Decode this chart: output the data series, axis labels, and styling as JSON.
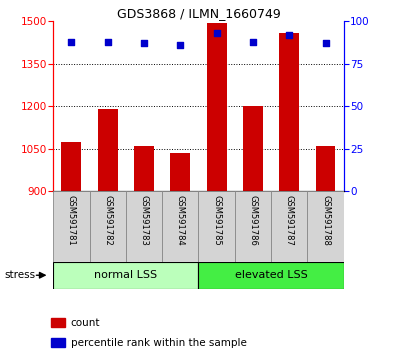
{
  "title": "GDS3868 / ILMN_1660749",
  "samples": [
    "GSM591781",
    "GSM591782",
    "GSM591783",
    "GSM591784",
    "GSM591785",
    "GSM591786",
    "GSM591787",
    "GSM591788"
  ],
  "bar_values": [
    1075,
    1190,
    1060,
    1035,
    1495,
    1200,
    1460,
    1058
  ],
  "percentile_values": [
    88,
    88,
    87,
    86,
    93,
    88,
    92,
    87
  ],
  "y_min": 900,
  "y_max": 1500,
  "y_ticks_left": [
    900,
    1050,
    1200,
    1350,
    1500
  ],
  "y_ticks_right": [
    0,
    25,
    50,
    75,
    100
  ],
  "percentile_min": 0,
  "percentile_max": 100,
  "bar_color": "#cc0000",
  "dot_color": "#0000cc",
  "groups": [
    {
      "label": "normal LSS",
      "start": 0,
      "end": 4,
      "color": "#bbffbb"
    },
    {
      "label": "elevated LSS",
      "start": 4,
      "end": 8,
      "color": "#44ee44"
    }
  ],
  "sample_bg_color": "#d4d4d4",
  "stress_label": "stress",
  "legend_count_label": "count",
  "legend_pct_label": "percentile rank within the sample",
  "title_fontsize": 9,
  "tick_fontsize": 7.5,
  "sample_fontsize": 6,
  "group_fontsize": 8,
  "legend_fontsize": 7.5
}
